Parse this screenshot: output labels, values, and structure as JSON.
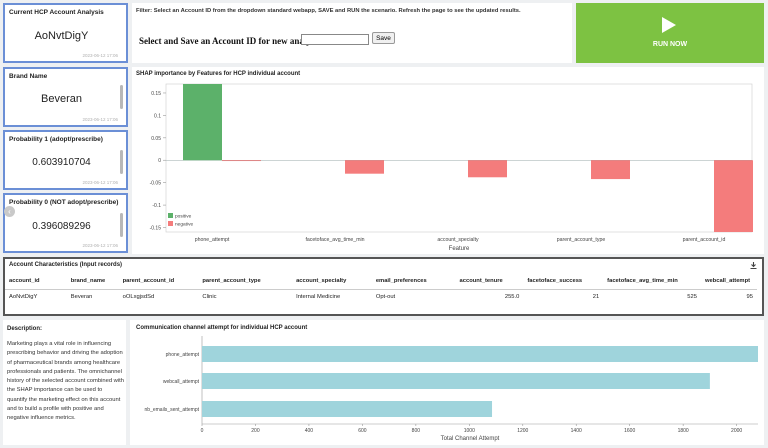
{
  "kpis": [
    {
      "title": "Current HCP Account Analysis",
      "value": "AoNvtDigY",
      "timestamp": "2023-06-12 17:06"
    },
    {
      "title": "Brand Name",
      "value": "Beveran",
      "timestamp": "2023-06-12 17:06"
    },
    {
      "title": "Probability 1 (adopt/prescribe)",
      "value": "0.603910704",
      "timestamp": "2023-06-12 17:06"
    },
    {
      "title": "Probability 0 (NOT adopt/prescribe)",
      "value": "0.396089296",
      "timestamp": "2023-06-12 17:06"
    }
  ],
  "filter": {
    "instruction": "Filter: Select an Account ID from the dropdown standard webapp, SAVE and RUN the scenario. Refresh the page to see the updated results.",
    "label": "Select and Save an Account ID for new analysis:",
    "input_value": "",
    "save_label": "Save"
  },
  "run": {
    "label": "RUN NOW",
    "color": "#7dc242"
  },
  "shap": {
    "title": "SHAP importance by Features for HCP individual account",
    "chart_data": {
      "type": "bar",
      "xlabel": "Feature",
      "ylabel": "",
      "ylim": [
        -0.16,
        0.17
      ],
      "yticks": [
        0.15,
        0.1,
        0.05,
        0,
        -0.05,
        -0.1,
        -0.15
      ],
      "ytick_labels": [
        "0.15",
        "0.1",
        "0.05",
        "0",
        "-0.05",
        "-0.1",
        "-0.15"
      ],
      "categories": [
        "phone_attempt",
        "facetoface_avg_time_min",
        "account_specialty",
        "parent_account_type",
        "parent_account_id"
      ],
      "series": [
        {
          "name": "positive",
          "color": "#5cb16a",
          "values": [
            0.17,
            0,
            0,
            0,
            0
          ]
        },
        {
          "name": "negative",
          "color": "#f47c7c",
          "values": [
            -0.001,
            -0.03,
            -0.038,
            -0.042,
            -0.16
          ]
        }
      ],
      "legend_position": "bottom-left"
    }
  },
  "table": {
    "title": "Account Characteristics (Input records)",
    "headers": [
      "account_id",
      "brand_name",
      "parent_account_id",
      "parent_account_type",
      "account_specialty",
      "email_preferences",
      "account_tenure",
      "facetoface_success",
      "facetoface_avg_time_min",
      "webcall_attempt"
    ],
    "rows": [
      [
        "AoNvtDigY",
        "Beveran",
        "oOLxgjsdSd",
        "Clinic",
        "Internal Medicine",
        "Opt-out",
        "255.0",
        "21",
        "525",
        "95"
      ]
    ]
  },
  "description": {
    "title": "Description:",
    "body": "Marketing plays a vital role in influencing prescribing behavior and driving the adoption of pharmaceutical brands among healthcare professionals and patients. The omnichannel history of the selected account combined with the SHAP importance can be used to quantify the marketing effect on this account and to build a profile with positive and negative influence metrics."
  },
  "channel": {
    "title": "Communication channel attempt for individual HCP account",
    "chart_data": {
      "type": "bar",
      "orientation": "horizontal",
      "xlabel": "Total Channel Attempt",
      "ylabel": "",
      "xlim": [
        0,
        2080
      ],
      "xticks": [
        0,
        200,
        400,
        600,
        800,
        1000,
        1200,
        1400,
        1600,
        1800,
        2000
      ],
      "categories": [
        "phone_attempt",
        "webcall_attempt",
        "nb_emails_sent_attempt"
      ],
      "values": [
        2080,
        1900,
        1085
      ],
      "color": "#9fd4dc"
    }
  }
}
